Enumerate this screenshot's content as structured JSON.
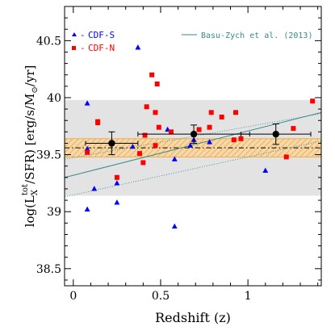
{
  "chart_data": {
    "type": "scatter",
    "xlabel": "Redshift (z)",
    "ylabel": "log(L_X^tot/SFR) [erg/s/M_⊙/yr]",
    "ylabel_parts": {
      "pre": "log(L",
      "sub": "X",
      "sup": "tot",
      "mid": "/SFR) [erg/s/M",
      "sun_sub": "⊙",
      "post": "/yr]"
    },
    "xlim": [
      -0.05,
      1.42
    ],
    "ylim": [
      38.35,
      40.8
    ],
    "x_ticks": [
      "0",
      "0.5",
      "1"
    ],
    "x_tick_values": [
      0,
      0.5,
      1
    ],
    "y_ticks": [
      "38.5",
      "39",
      "39.5",
      "40",
      "40.5"
    ],
    "y_tick_values": [
      38.5,
      39.0,
      39.5,
      40.0,
      40.5
    ],
    "grid": false,
    "legend_position": "top-left",
    "series": [
      {
        "name": "CDF-S",
        "marker": "triangle",
        "color": "#0000ff",
        "points": [
          [
            0.08,
            39.95
          ],
          [
            0.08,
            39.55
          ],
          [
            0.08,
            39.02
          ],
          [
            0.12,
            39.2
          ],
          [
            0.25,
            39.25
          ],
          [
            0.25,
            39.08
          ],
          [
            0.34,
            39.57
          ],
          [
            0.37,
            40.44
          ],
          [
            0.54,
            39.72
          ],
          [
            0.58,
            39.46
          ],
          [
            0.58,
            38.87
          ],
          [
            0.67,
            39.58
          ],
          [
            0.69,
            39.63
          ],
          [
            0.78,
            39.61
          ],
          [
            1.1,
            39.36
          ]
        ]
      },
      {
        "name": "CDF-N",
        "marker": "square",
        "color": "#ff0000",
        "points": [
          [
            0.08,
            39.52
          ],
          [
            0.14,
            39.79
          ],
          [
            0.14,
            39.78
          ],
          [
            0.25,
            39.3
          ],
          [
            0.38,
            39.51
          ],
          [
            0.4,
            39.43
          ],
          [
            0.41,
            39.67
          ],
          [
            0.42,
            39.92
          ],
          [
            0.45,
            40.2
          ],
          [
            0.47,
            39.87
          ],
          [
            0.47,
            39.58
          ],
          [
            0.48,
            40.12
          ],
          [
            0.49,
            39.74
          ],
          [
            0.56,
            39.7
          ],
          [
            0.72,
            39.72
          ],
          [
            0.78,
            39.74
          ],
          [
            0.79,
            39.87
          ],
          [
            0.85,
            39.83
          ],
          [
            0.92,
            39.63
          ],
          [
            0.93,
            39.87
          ],
          [
            0.96,
            39.64
          ],
          [
            1.22,
            39.48
          ],
          [
            1.26,
            39.73
          ],
          [
            1.37,
            39.97
          ]
        ]
      }
    ],
    "binned_means": [
      {
        "x": 0.22,
        "y": 39.6,
        "xerr": [
          0.15,
          0.15
        ],
        "yerr": [
          0.1,
          0.1
        ]
      },
      {
        "x": 0.69,
        "y": 39.68,
        "xerr": [
          0.32,
          0.32
        ],
        "yerr": [
          0.08,
          0.08
        ]
      },
      {
        "x": 1.16,
        "y": 39.68,
        "xerr": [
          0.2,
          0.2
        ],
        "yerr": [
          0.09,
          0.09
        ]
      }
    ],
    "mean_line": {
      "y": 39.56,
      "band": [
        39.48,
        39.64
      ],
      "color": "#f0a030"
    },
    "scatter_band": [
      39.14,
      39.98
    ],
    "basu_zych": {
      "name": "Basu-Zych et al. (2013)",
      "color": "#3a8a8a",
      "line": [
        [
          -0.05,
          39.3
        ],
        [
          1.42,
          39.87
        ]
      ],
      "upper": [
        [
          -0.05,
          39.46
        ],
        [
          1.42,
          39.86
        ]
      ],
      "lower": [
        [
          -0.05,
          39.13
        ],
        [
          1.42,
          39.62
        ]
      ]
    }
  },
  "legend": {
    "cdfs_label": "CDF-S",
    "cdfn_label": "CDF-N",
    "basu_zych_label": "Basu-Zych et al. (2013)"
  },
  "colors": {
    "band_gray": "#e3e3e3",
    "axis": "#000000"
  }
}
